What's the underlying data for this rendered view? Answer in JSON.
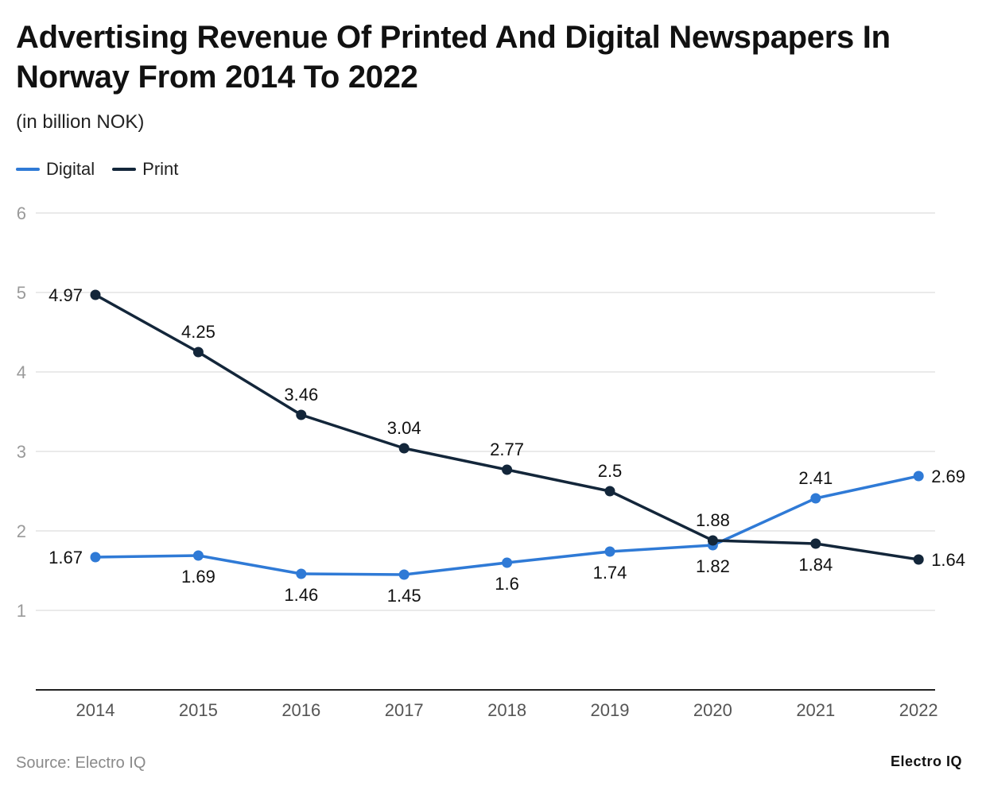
{
  "title": "Advertising Revenue Of Printed And Digital Newspapers In Norway From 2014 To 2022",
  "subtitle": "(in billion NOK)",
  "source": "Source: Electro IQ",
  "brand": "Electro IQ",
  "chart_data": {
    "type": "line",
    "categories": [
      "2014",
      "2015",
      "2016",
      "2017",
      "2018",
      "2019",
      "2020",
      "2021",
      "2022"
    ],
    "series": [
      {
        "name": "Digital",
        "color": "#2f7ad6",
        "values": [
          1.67,
          1.69,
          1.46,
          1.45,
          1.6,
          1.74,
          1.82,
          2.41,
          2.69
        ]
      },
      {
        "name": "Print",
        "color": "#13263a",
        "values": [
          4.97,
          4.25,
          3.46,
          3.04,
          2.77,
          2.5,
          1.88,
          1.84,
          1.64
        ]
      }
    ],
    "y_ticks": [
      "1",
      "2",
      "3",
      "4",
      "5",
      "6"
    ],
    "ylim": [
      0,
      6
    ],
    "grid": true,
    "legend_position": "top-left",
    "xlabel": "",
    "ylabel": ""
  }
}
